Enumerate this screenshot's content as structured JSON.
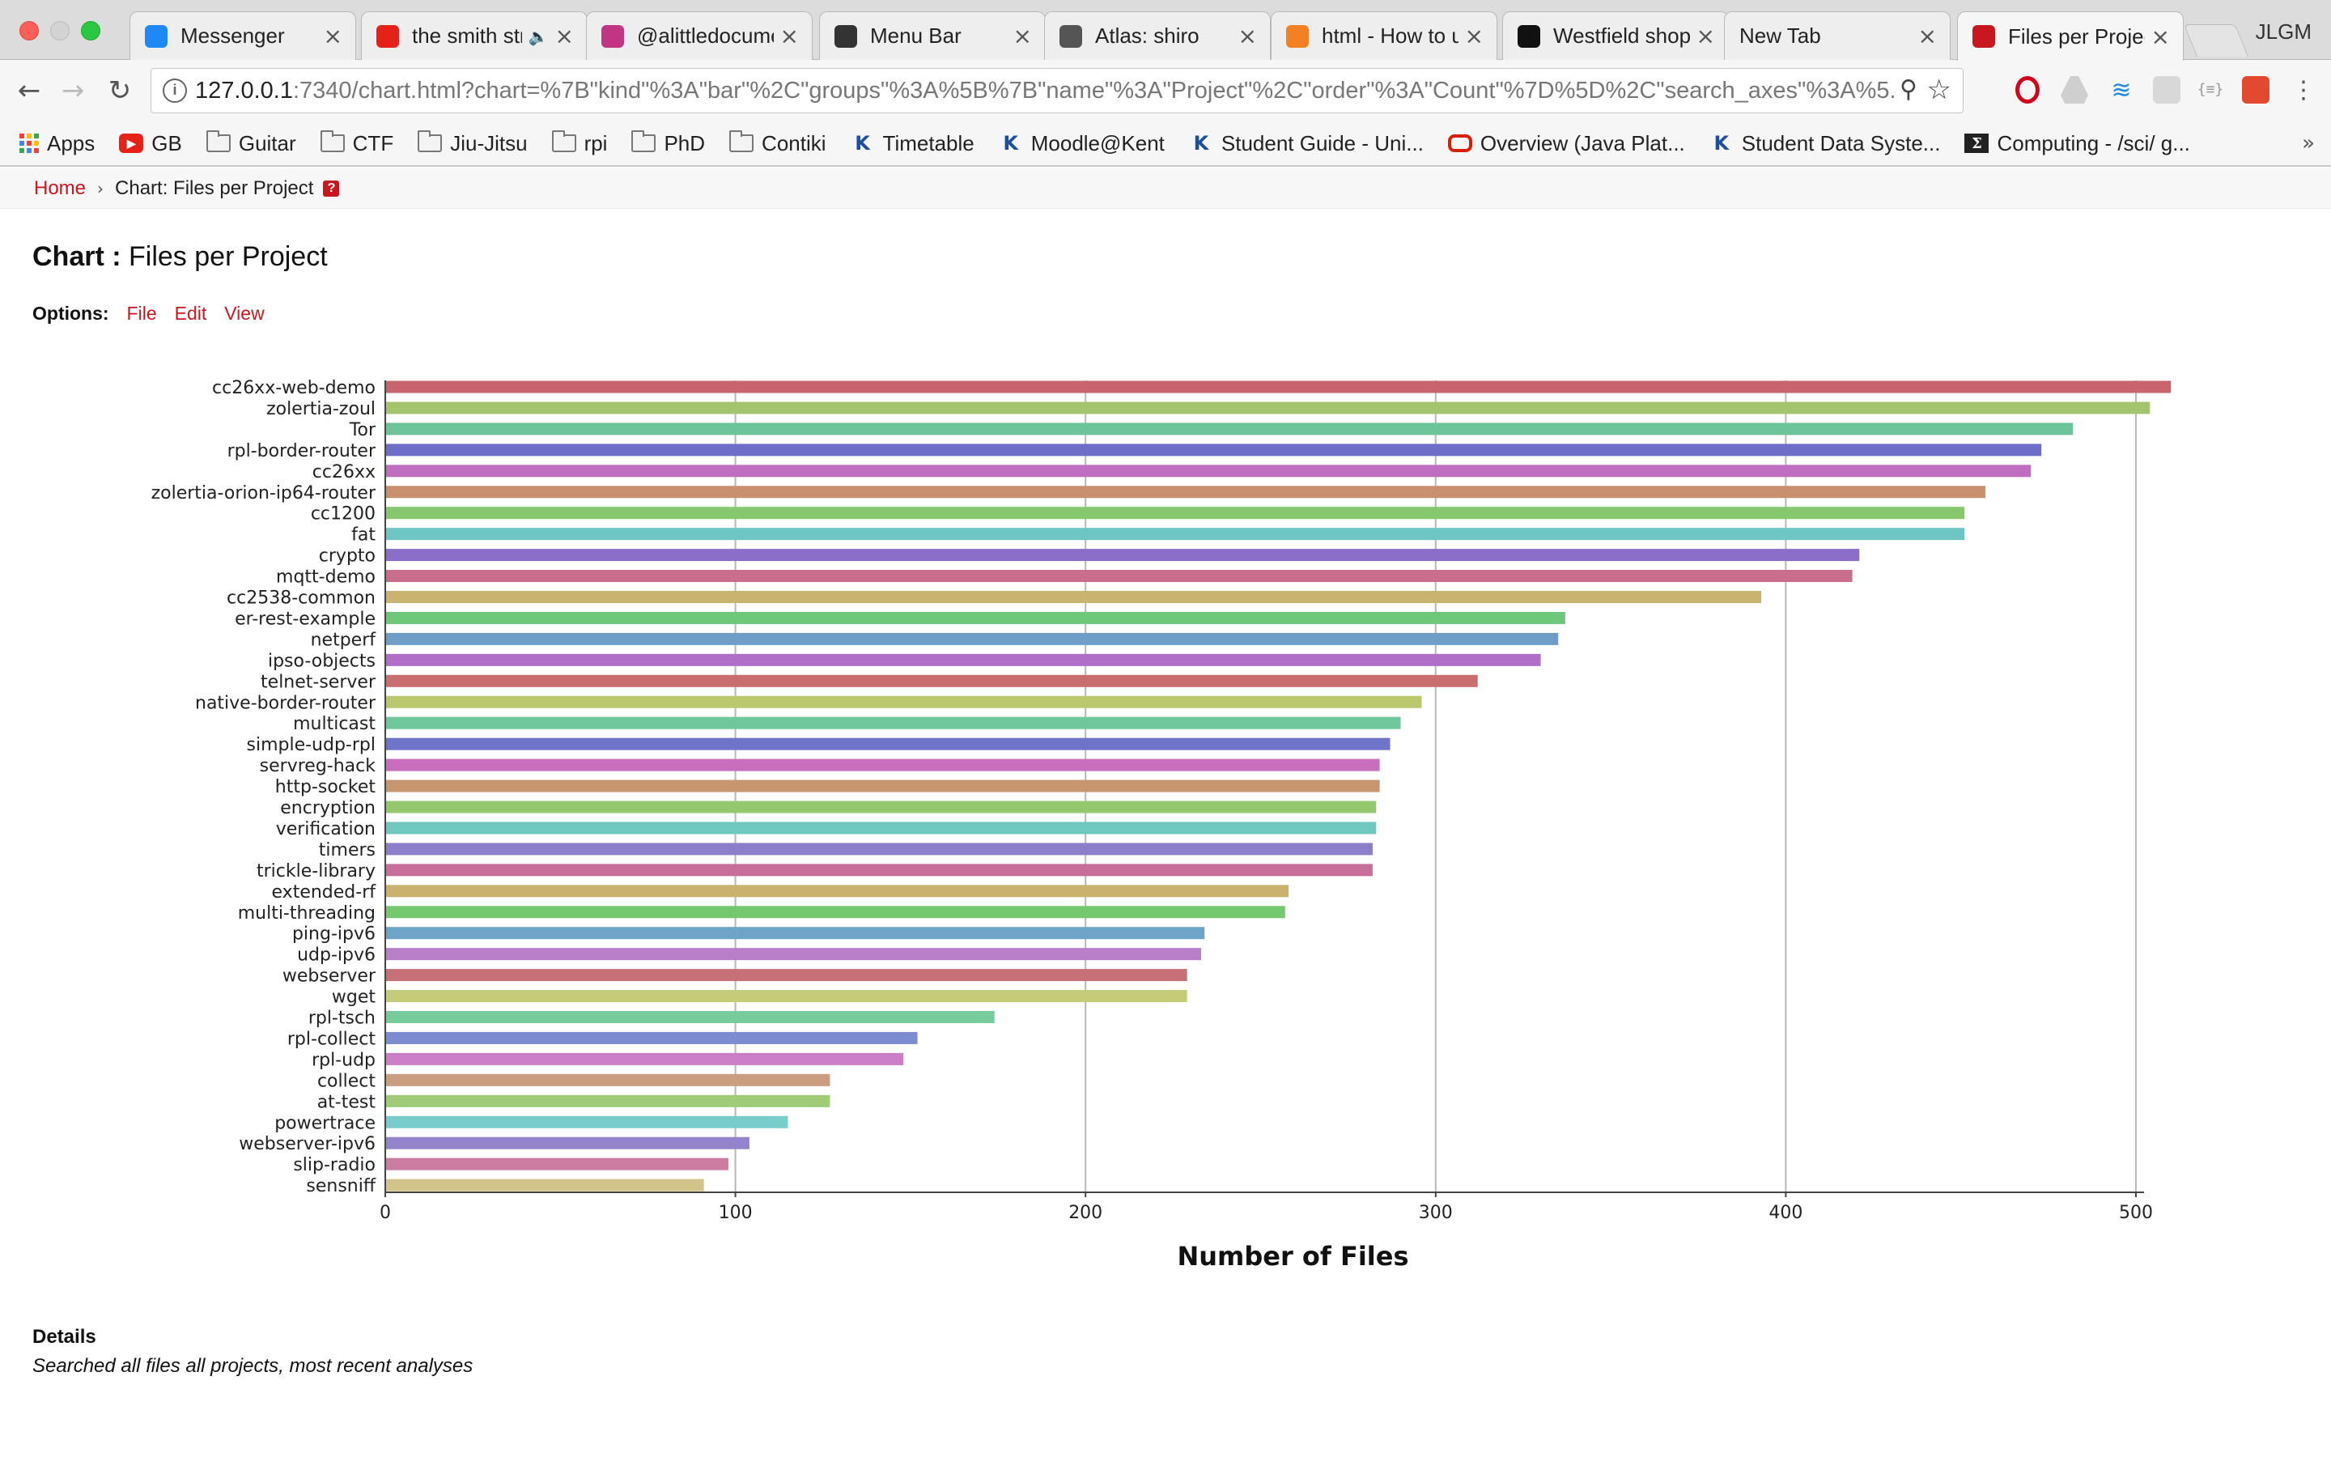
{
  "browser": {
    "tabs": [
      {
        "title": "Messenger",
        "icon": "messenger-icon",
        "color": "#1e88f5",
        "active": false
      },
      {
        "title": "the smith str",
        "icon": "youtube-icon",
        "color": "#e62117",
        "active": false,
        "audio": true
      },
      {
        "title": "@alittledocume",
        "icon": "instagram-icon",
        "color": "#c13584",
        "active": false
      },
      {
        "title": "Menu Bar",
        "icon": "github-icon",
        "color": "#333333",
        "active": false
      },
      {
        "title": "Atlas: shiro",
        "icon": "atlas-icon",
        "color": "#555555",
        "active": false
      },
      {
        "title": "html - How to u",
        "icon": "stackoverflow-icon",
        "color": "#f48024",
        "active": false
      },
      {
        "title": "Westfield shopp",
        "icon": "westfield-icon",
        "color": "#111111",
        "active": false
      },
      {
        "title": "New Tab",
        "icon": "",
        "color": "",
        "active": false
      },
      {
        "title": "Files per Projec",
        "icon": "app-icon",
        "color": "#c8171e",
        "active": true
      }
    ],
    "profile": "JLGM",
    "url_host": "127.0.0.1",
    "url_rest": ":7340/chart.html?chart=%7B\"kind\"%3A\"bar\"%2C\"groups\"%3A%5B%7B\"name\"%3A\"Project\"%2C\"order\"%3A\"Count\"%7D%5D%2C\"search_axes\"%3A%5...",
    "bookmarks": [
      {
        "label": "Apps",
        "icon": "apps-icon"
      },
      {
        "label": "GB",
        "icon": "youtube-icon"
      },
      {
        "label": "Guitar",
        "icon": "folder-icon"
      },
      {
        "label": "CTF",
        "icon": "folder-icon"
      },
      {
        "label": "Jiu-Jitsu",
        "icon": "folder-icon"
      },
      {
        "label": "rpi",
        "icon": "folder-icon"
      },
      {
        "label": "PhD",
        "icon": "folder-icon"
      },
      {
        "label": "Contiki",
        "icon": "folder-icon"
      },
      {
        "label": "Timetable",
        "icon": "kent-icon"
      },
      {
        "label": "Moodle@Kent",
        "icon": "kent-icon"
      },
      {
        "label": "Student Guide - Uni...",
        "icon": "kent-icon"
      },
      {
        "label": "Overview (Java Plat...",
        "icon": "oracle-icon"
      },
      {
        "label": "Student Data Syste...",
        "icon": "kent-icon"
      },
      {
        "label": "Computing - /sci/ g...",
        "icon": "sigma-icon"
      }
    ],
    "bookmarks_more": "»"
  },
  "page": {
    "breadcrumb": {
      "home": "Home",
      "separator": "›",
      "current": "Chart: Files per Project",
      "help": "?"
    },
    "title_label": "Chart :",
    "title": "Files per Project",
    "options_label": "Options:",
    "options": [
      "File",
      "Edit",
      "View"
    ],
    "details_title": "Details",
    "details_text": "Searched all files all projects, most recent analyses",
    "accent_color": "#c8171e"
  },
  "chart_data": {
    "type": "bar",
    "orientation": "horizontal",
    "xlabel": "Number of Files",
    "ylabel": "",
    "xlim": [
      0,
      520
    ],
    "xticks": [
      0,
      100,
      200,
      300,
      400,
      500
    ],
    "grid": true,
    "categories": [
      "cc26xx-web-demo",
      "zolertia-zoul",
      "Tor",
      "rpl-border-router",
      "cc26xx",
      "zolertia-orion-ip64-router",
      "cc1200",
      "fat",
      "crypto",
      "mqtt-demo",
      "cc2538-common",
      "er-rest-example",
      "netperf",
      "ipso-objects",
      "telnet-server",
      "native-border-router",
      "multicast",
      "simple-udp-rpl",
      "servreg-hack",
      "http-socket",
      "encryption",
      "verification",
      "timers",
      "trickle-library",
      "extended-rf",
      "multi-threading",
      "ping-ipv6",
      "udp-ipv6",
      "webserver",
      "wget",
      "rpl-tsch",
      "rpl-collect",
      "rpl-udp",
      "collect",
      "at-test",
      "powertrace",
      "webserver-ipv6",
      "slip-radio",
      "sensniff"
    ],
    "values": [
      510,
      504,
      482,
      473,
      470,
      457,
      451,
      451,
      421,
      419,
      393,
      337,
      335,
      330,
      312,
      296,
      290,
      287,
      284,
      284,
      283,
      283,
      282,
      282,
      258,
      257,
      234,
      233,
      229,
      229,
      174,
      152,
      148,
      127,
      127,
      115,
      104,
      98,
      91
    ],
    "colors": [
      "#c8646e",
      "#a3c56e",
      "#6cc49a",
      "#6e6ec8",
      "#c06ec2",
      "#c8906e",
      "#86c86e",
      "#6ec6c2",
      "#8a6ec8",
      "#c86e8c",
      "#c8b46e",
      "#6ec87a",
      "#6e9ec8",
      "#b06ec8",
      "#c86e6e",
      "#bcc86e",
      "#6ec89c",
      "#6e74c8",
      "#c86ebc",
      "#c8966e",
      "#94c86e",
      "#6ec8c0",
      "#8c7ec8",
      "#c86e9a",
      "#c8b26e",
      "#74c86e",
      "#6ea4c8",
      "#b87ec8",
      "#c87078",
      "#c4cc78",
      "#78cc9c",
      "#7c8cd0",
      "#cc7ec6",
      "#cc9e80",
      "#a0cc78",
      "#78ccca",
      "#9484cc",
      "#cc7ca0",
      "#d2c488"
    ]
  }
}
